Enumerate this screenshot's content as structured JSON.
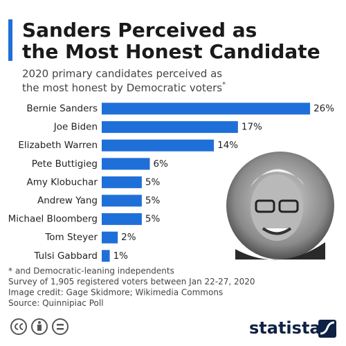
{
  "chart_data": {
    "type": "bar",
    "orientation": "horizontal",
    "title": [
      "Sanders Perceived as",
      "the Most Honest Candidate"
    ],
    "subtitle": [
      "2020 primary candidates perceived as",
      "the most honest by Democratic voters"
    ],
    "subtitle_marker": "*",
    "categories": [
      "Bernie Sanders",
      "Joe Biden",
      "Elizabeth Warren",
      "Pete Buttigieg",
      "Amy Klobuchar",
      "Andrew Yang",
      "Michael Bloomberg",
      "Tom Steyer",
      "Tulsi Gabbard"
    ],
    "values": [
      26,
      17,
      14,
      6,
      5,
      5,
      5,
      2,
      1
    ],
    "value_labels": [
      "26%",
      "17%",
      "14%",
      "6%",
      "5%",
      "5%",
      "5%",
      "2%",
      "1%"
    ],
    "color": "#1f6fd8",
    "notes": [
      "* and Democratic-leaning independents",
      "Survey of 1,905 registered voters between Jan 22-27, 2020",
      "Image credit: Gage Skidmore; Wikimedia Commons",
      "Source: Quinnipiac Poll"
    ]
  },
  "brand": "statista"
}
